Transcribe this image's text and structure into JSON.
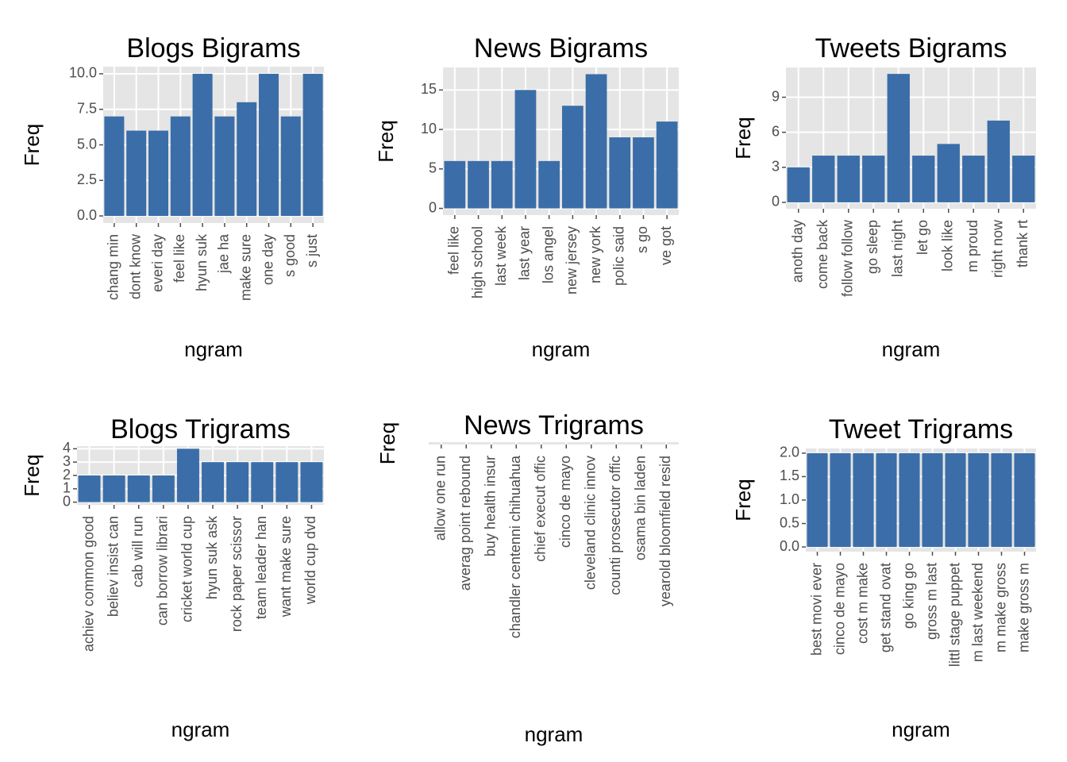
{
  "chart_data": [
    {
      "type": "bar",
      "title": "Blogs Bigrams",
      "x_label": "ngram",
      "y_label": "Freq",
      "color": "#3b6ea8",
      "grid": true,
      "categories": [
        "chang min",
        "dont know",
        "everi day",
        "feel like",
        "hyun suk",
        "jae ha",
        "make sure",
        "one day",
        "s good",
        "s just"
      ],
      "values": [
        7,
        6,
        6,
        7,
        10,
        7,
        8,
        10,
        7,
        10
      ],
      "ylim": [
        -0.5,
        10.5
      ],
      "yticks": [
        {
          "value": 0,
          "label": "0.0"
        },
        {
          "value": 2.5,
          "label": "2.5"
        },
        {
          "value": 5,
          "label": "5.0"
        },
        {
          "value": 7.5,
          "label": "7.5"
        },
        {
          "value": 10,
          "label": "10.0"
        }
      ]
    },
    {
      "type": "bar",
      "title": "News Bigrams",
      "x_label": "ngram",
      "y_label": "Freq",
      "color": "#3b6ea8",
      "grid": true,
      "categories": [
        "feel like",
        "high school",
        "last week",
        "last year",
        "los angel",
        "new jersey",
        "new york",
        "polic said",
        "s go",
        "ve got"
      ],
      "values": [
        6,
        6,
        6,
        15,
        6,
        13,
        17,
        9,
        9,
        11
      ],
      "ylim": [
        -0.85,
        17.85
      ],
      "yticks": [
        0,
        5,
        10,
        15
      ]
    },
    {
      "type": "bar",
      "title": "Tweets Bigrams",
      "x_label": "ngram",
      "y_label": "Freq",
      "color": "#3b6ea8",
      "grid": true,
      "categories": [
        "anoth day",
        "come back",
        "follow follow",
        "go sleep",
        "last night",
        "let go",
        "look like",
        "m proud",
        "right now",
        "thank rt"
      ],
      "values": [
        3,
        4,
        4,
        4,
        11,
        4,
        5,
        4,
        7,
        4
      ],
      "ylim": [
        -0.55,
        11.55
      ],
      "yticks": [
        0,
        3,
        6,
        9
      ]
    },
    {
      "type": "bar",
      "title": "Blogs Trigrams",
      "x_label": "ngram",
      "y_label": "Freq",
      "color": "#3b6ea8",
      "grid": true,
      "categories": [
        "achiev common good",
        "believ insist can",
        "cab will run",
        "can borrow librari",
        "cricket world cup",
        "hyun suk ask",
        "rock paper scissor",
        "team leader han",
        "want make sure",
        "world cup dvd"
      ],
      "values": [
        2,
        2,
        2,
        2,
        4,
        3,
        3,
        3,
        3,
        3
      ],
      "ylim": [
        -0.2,
        4.2
      ],
      "yticks": [
        0,
        1,
        2,
        3,
        4
      ]
    },
    {
      "type": "bar",
      "title": "News Trigrams",
      "x_label": "ngram",
      "y_label": "Freq",
      "color": "#3b6ea8",
      "grid": true,
      "categories": [
        "allow one run",
        "averag point rebound",
        "buy health insur",
        "chandler centenni chihuahua",
        "chief execut offic",
        "cinco de mayo",
        "cleveland clinic innov",
        "counti prosecutor offic",
        "osama bin laden",
        "yearold bloomfield resid"
      ]
    },
    {
      "type": "bar",
      "title": "Tweet Trigrams",
      "x_label": "ngram",
      "y_label": "Freq",
      "color": "#3b6ea8",
      "grid": true,
      "categories": [
        "best movi ever",
        "cinco de mayo",
        "cost m make",
        "get stand ovat",
        "go king go",
        "gross m last",
        "littl stage puppet",
        "m last weekend",
        "m make gross",
        "make gross m"
      ],
      "values": [
        2,
        2,
        2,
        2,
        2,
        2,
        2,
        2,
        2,
        2
      ],
      "ylim": [
        -0.1,
        2.1
      ],
      "yticks": [
        {
          "value": 0,
          "label": "0.0"
        },
        {
          "value": 0.5,
          "label": "0.5"
        },
        {
          "value": 1,
          "label": "1.0"
        },
        {
          "value": 1.5,
          "label": "1.5"
        },
        {
          "value": 2,
          "label": "2.0"
        }
      ]
    }
  ]
}
